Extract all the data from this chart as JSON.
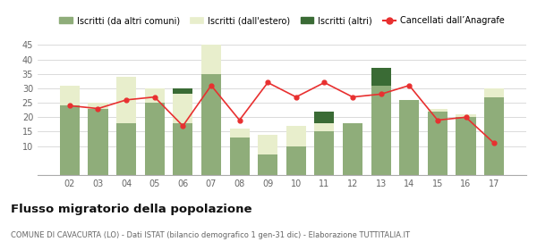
{
  "years": [
    "02",
    "03",
    "04",
    "05",
    "06",
    "07",
    "08",
    "09",
    "10",
    "11",
    "12",
    "13",
    "14",
    "15",
    "16",
    "17"
  ],
  "iscritti_comuni": [
    24,
    23,
    18,
    25,
    18,
    35,
    13,
    7,
    10,
    15,
    18,
    31,
    26,
    22,
    20,
    27
  ],
  "iscritti_estero": [
    7,
    2,
    16,
    5,
    10,
    10,
    3,
    7,
    7,
    3,
    0,
    0,
    0,
    1,
    1,
    3
  ],
  "iscritti_altri": [
    0,
    0,
    0,
    0,
    2,
    0,
    0,
    0,
    0,
    4,
    0,
    6,
    0,
    0,
    0,
    0
  ],
  "cancellati": [
    24,
    23,
    26,
    27,
    17,
    31,
    19,
    32,
    27,
    32,
    27,
    28,
    31,
    19,
    20,
    11
  ],
  "color_comuni": "#8fad7a",
  "color_estero": "#e8eecc",
  "color_altri": "#3a6b35",
  "color_cancellati": "#e83030",
  "ylim": [
    0,
    45
  ],
  "yticks": [
    10,
    15,
    20,
    25,
    30,
    35,
    40,
    45
  ],
  "title": "Flusso migratorio della popolazione",
  "subtitle": "COMUNE DI CAVACURTA (LO) - Dati ISTAT (bilancio demografico 1 gen-31 dic) - Elaborazione TUTTITALIA.IT",
  "legend_labels": [
    "Iscritti (da altri comuni)",
    "Iscritti (dall'estero)",
    "Iscritti (altri)",
    "Cancellati dall’Anagrafe"
  ],
  "background_color": "#ffffff",
  "grid_color": "#cccccc"
}
